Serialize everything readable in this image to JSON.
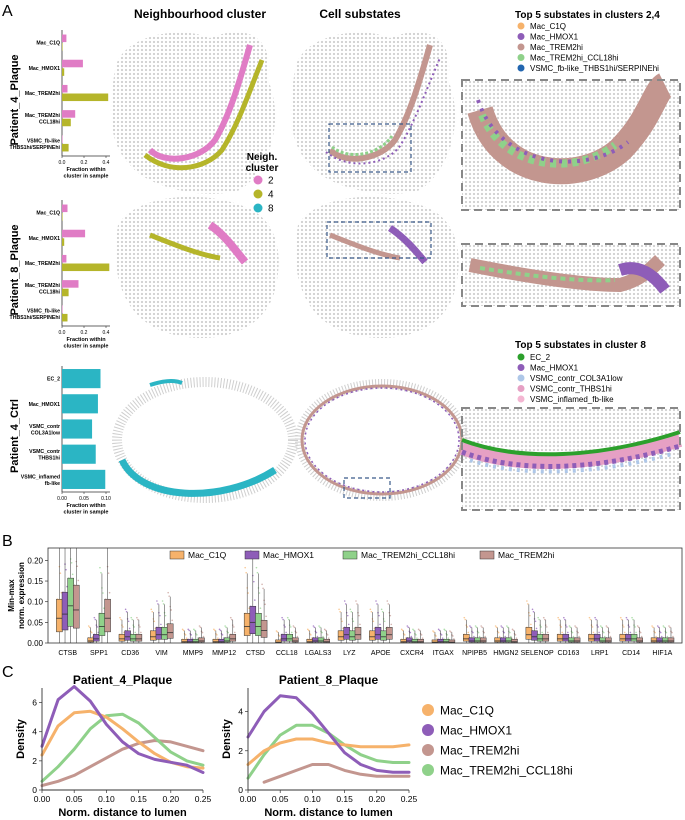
{
  "panels": {
    "A": "A",
    "B": "B",
    "C": "C"
  },
  "headers": {
    "neighbourhood": "Neighbourhood cluster",
    "substates": "Cell substates",
    "top24": "Top 5 substates in clusters 2,4",
    "top8": "Top 5 substates in cluster 8"
  },
  "colors": {
    "c2": "#e07cc5",
    "c4": "#b5b52a",
    "c8": "#2bb5c4",
    "mac_c1q": "#f6b26b",
    "mac_hmox1": "#8e5db8",
    "mac_trem2hi": "#c3968f",
    "mac_trem2hi_ccl18hi": "#8fd18a",
    "vsmc_fb": "#2266b0",
    "ec2": "#2ca02c",
    "vsmc_col3a1": "#aec7e8",
    "vsmc_thbs1": "#e6a0c4",
    "vsmc_inflamed": "#f4b6d2"
  },
  "rows": [
    {
      "label": "Patient_4_Plaque",
      "xlabel": "Fraction within\ncluster in sample",
      "ticks": [
        "0.0",
        "0.2",
        "0.4"
      ],
      "xmax": 0.4,
      "bars": [
        {
          "name": "Mac_C1Q",
          "v2": 0.04,
          "v4": 0.005
        },
        {
          "name": "Mac_HMOX1",
          "v2": 0.19,
          "v4": 0.02
        },
        {
          "name": "Mac_TREM2hi",
          "v2": 0.05,
          "v4": 0.42
        },
        {
          "name": "Mac_TREM2hi\nCCL18hi",
          "v2": 0.12,
          "v4": 0.08
        },
        {
          "name": "VSMC_fb-like\nTHBS1hi/SERPINEhi",
          "v2": 0.005,
          "v4": 0.06
        }
      ]
    },
    {
      "label": "Patient_8_Plaque",
      "xlabel": "Fraction within\ncluster in sample",
      "ticks": [
        "0.0",
        "0.2",
        "0.4"
      ],
      "xmax": 0.4,
      "bars": [
        {
          "name": "Mac_C1Q",
          "v2": 0.05,
          "v4": 0.005
        },
        {
          "name": "Mac_HMOX1",
          "v2": 0.21,
          "v4": 0.02
        },
        {
          "name": "Mac_TREM2hi",
          "v2": 0.04,
          "v4": 0.43
        },
        {
          "name": "Mac_TREM2hi\nCCL18hi",
          "v2": 0.15,
          "v4": 0.06
        },
        {
          "name": "VSMC_fb-like\nTHBS1hi/SERPINEhi",
          "v2": 0.005,
          "v4": 0.05
        }
      ]
    },
    {
      "label": "Patient_4_Ctrl",
      "xlabel": "Fraction within\ncluster in sample",
      "ticks": [
        "0.00",
        "0.05",
        "0.10"
      ],
      "xmax": 0.12,
      "bars": [
        {
          "name": "EC_2",
          "v8": 0.105
        },
        {
          "name": "Mac_HMOX1",
          "v8": 0.098
        },
        {
          "name": "VSMC_contr\nCOL3A1low",
          "v8": 0.082
        },
        {
          "name": "VSMC_contr\nTHBS1hi",
          "v8": 0.092
        },
        {
          "name": "VSMC_inflamed\nfb-like",
          "v8": 0.118
        }
      ]
    }
  ],
  "neigh_legend": {
    "title": "Neigh.\ncluster",
    "items": [
      "2",
      "4",
      "8"
    ]
  },
  "legend_top24": [
    "Mac_C1Q",
    "Mac_HMOX1",
    "Mac_TREM2hi",
    "Mac_TREM2hi_CCL18hi",
    "VSMC_fb-like_THBS1hi/SERPINEhi"
  ],
  "legend_top8": [
    "EC_2",
    "Mac_HMOX1",
    "VSMC_contr_COL3A1low",
    "VSMC_contr_THBS1hi",
    "VSMC_inflamed_fb-like"
  ],
  "chart_data": [
    {
      "type": "box",
      "title": "",
      "ylabel": "Min-max\nnorm. expression",
      "ylim": [
        0,
        0.23
      ],
      "yticks": [
        "0.00",
        "0.05",
        "0.10",
        "0.15",
        "0.20"
      ],
      "categories": [
        "CTSB",
        "SPP1",
        "CD36",
        "VIM",
        "MMP9",
        "MMP12",
        "CTSD",
        "CCL18",
        "LGALS3",
        "LYZ",
        "APOE",
        "CXCR4",
        "ITGAX",
        "NPIPB5",
        "HMGN2",
        "SELENOP",
        "CD163",
        "LRP1",
        "CD14",
        "HIF1A"
      ],
      "series": [
        {
          "name": "Mac_C1Q",
          "medians": [
            0.06,
            0.005,
            0.01,
            0.015,
            0.003,
            0.003,
            0.04,
            0.002,
            0.003,
            0.015,
            0.015,
            0.003,
            0.002,
            0.01,
            0.005,
            0.02,
            0.01,
            0.01,
            0.01,
            0.005
          ]
        },
        {
          "name": "Mac_HMOX1",
          "medians": [
            0.07,
            0.01,
            0.015,
            0.02,
            0.003,
            0.003,
            0.05,
            0.01,
            0.005,
            0.02,
            0.02,
            0.005,
            0.003,
            0.005,
            0.005,
            0.015,
            0.01,
            0.01,
            0.01,
            0.005
          ]
        },
        {
          "name": "Mac_TREM2hi_CCL18hi",
          "medians": [
            0.09,
            0.04,
            0.01,
            0.02,
            0.003,
            0.005,
            0.04,
            0.01,
            0.005,
            0.015,
            0.015,
            0.003,
            0.003,
            0.005,
            0.005,
            0.01,
            0.005,
            0.005,
            0.01,
            0.005
          ]
        },
        {
          "name": "Mac_TREM2hi",
          "medians": [
            0.08,
            0.06,
            0.01,
            0.025,
            0.005,
            0.01,
            0.03,
            0.005,
            0.003,
            0.02,
            0.02,
            0.003,
            0.002,
            0.005,
            0.003,
            0.01,
            0.005,
            0.005,
            0.005,
            0.005
          ]
        }
      ]
    },
    {
      "type": "line",
      "title": "Patient_4_Plaque",
      "xlabel": "Norm. distance to lumen",
      "ylabel": "Density",
      "xlim": [
        0,
        0.25
      ],
      "ylim": [
        0,
        7
      ],
      "xticks": [
        "0.00",
        "0.05",
        "0.10",
        "0.15",
        "0.20",
        "0.25"
      ],
      "yticks": [
        "0",
        "2",
        "4",
        "6"
      ],
      "x": [
        0,
        0.025,
        0.05,
        0.075,
        0.1,
        0.125,
        0.15,
        0.175,
        0.2,
        0.225,
        0.25
      ],
      "series": [
        {
          "name": "Mac_C1Q",
          "values": [
            2.4,
            4.4,
            5.3,
            5.4,
            5.0,
            4.2,
            3.3,
            2.5,
            1.9,
            1.6,
            1.5
          ]
        },
        {
          "name": "Mac_HMOX1",
          "values": [
            3.0,
            6.2,
            7.1,
            6.1,
            4.5,
            3.3,
            2.5,
            2.1,
            1.9,
            1.7,
            1.2
          ]
        },
        {
          "name": "Mac_TREM2hi",
          "values": [
            0.3,
            0.6,
            1.0,
            1.6,
            2.2,
            2.8,
            3.2,
            3.4,
            3.3,
            3.0,
            2.7
          ]
        },
        {
          "name": "Mac_TREM2hi_CCL18hi",
          "values": [
            0.6,
            1.6,
            2.8,
            4.2,
            5.1,
            5.2,
            4.6,
            3.6,
            2.6,
            2.0,
            1.7
          ]
        }
      ]
    },
    {
      "type": "line",
      "title": "Patient_8_Plaque",
      "xlabel": "Norm. distance to lumen",
      "ylabel": "Density",
      "xlim": [
        0,
        0.25
      ],
      "ylim": [
        0,
        5.2
      ],
      "xticks": [
        "0.00",
        "0.05",
        "0.10",
        "0.15",
        "0.20",
        "0.25"
      ],
      "yticks": [
        "0",
        "2",
        "4"
      ],
      "x": [
        0,
        0.025,
        0.05,
        0.075,
        0.1,
        0.125,
        0.15,
        0.175,
        0.2,
        0.225,
        0.25
      ],
      "series": [
        {
          "name": "Mac_C1Q",
          "values": [
            1.3,
            2.0,
            2.4,
            2.6,
            2.6,
            2.4,
            2.3,
            2.2,
            2.2,
            2.2,
            2.3
          ]
        },
        {
          "name": "Mac_HMOX1",
          "values": [
            2.7,
            4.0,
            4.8,
            4.7,
            3.9,
            2.9,
            1.9,
            1.3,
            1.0,
            0.9,
            0.9
          ]
        },
        {
          "name": "Mac_TREM2hi",
          "values": [
            null,
            0.4,
            0.7,
            1.0,
            1.3,
            1.3,
            1.0,
            0.8,
            0.7,
            0.7,
            0.7
          ]
        },
        {
          "name": "Mac_TREM2hi_CCL18hi",
          "values": [
            0.6,
            1.8,
            2.8,
            3.3,
            3.3,
            2.9,
            2.3,
            1.8,
            1.5,
            1.4,
            1.4
          ]
        }
      ]
    }
  ]
}
